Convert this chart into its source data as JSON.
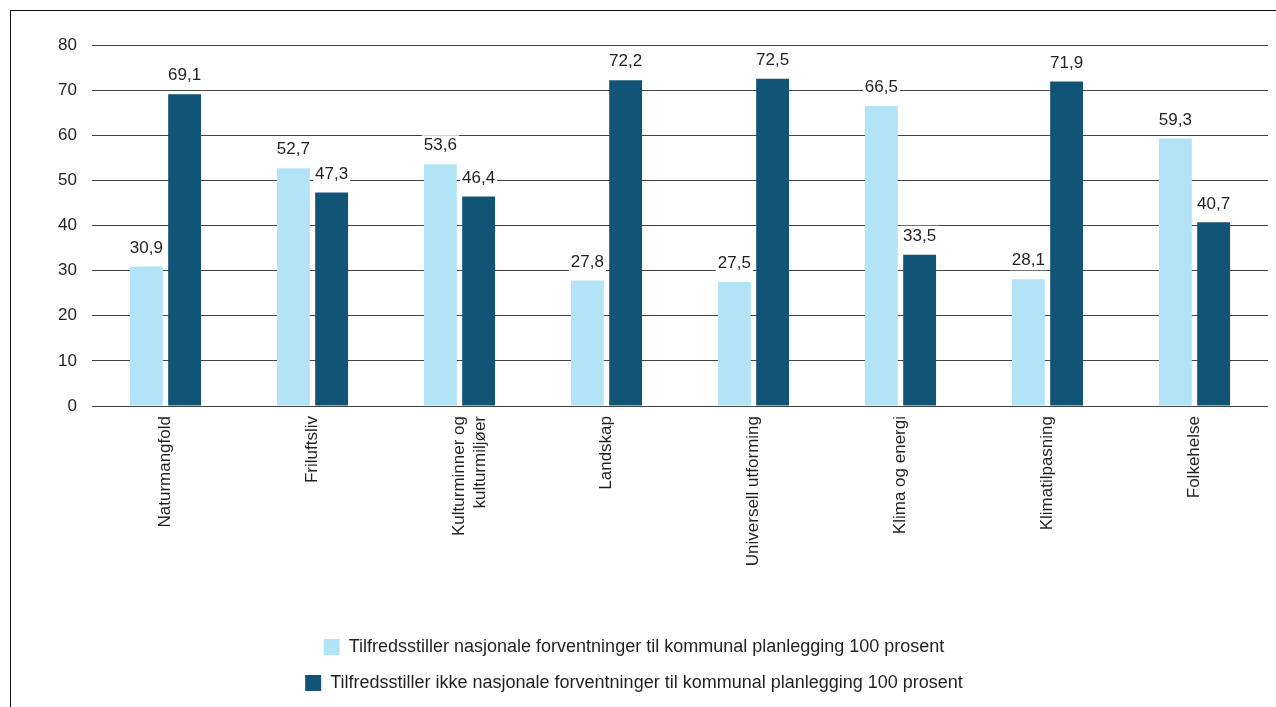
{
  "chart_data": {
    "type": "bar",
    "categories": [
      "Naturmangfold",
      "Friluftsliv",
      "Kulturminner og kulturmiljøer",
      "Landskap",
      "Universell utforming",
      "Klima og energi",
      "Klimatilpasning",
      "Folkehelse"
    ],
    "series": [
      {
        "name": "Tilfredsstiller nasjonale forventninger til kommunal planlegging 100 prosent",
        "color": "#b3e3f7",
        "values": [
          30.9,
          52.7,
          53.6,
          27.8,
          27.5,
          66.5,
          28.1,
          59.3
        ],
        "value_labels": [
          "30,9",
          "52,7",
          "53,6",
          "27,8",
          "27,5",
          "66,5",
          "28,1",
          "59,3"
        ]
      },
      {
        "name": "Tilfredsstiller ikke nasjonale forventninger til kommunal planlegging 100 prosent",
        "color": "#125476",
        "values": [
          69.1,
          47.3,
          46.4,
          72.2,
          72.5,
          33.5,
          71.9,
          40.7
        ],
        "value_labels": [
          "69,1",
          "47,3",
          "46,4",
          "72,2",
          "72,5",
          "33,5",
          "71,9",
          "40,7"
        ]
      }
    ],
    "ylim": [
      0,
      80
    ],
    "yticks": [
      0,
      10,
      20,
      30,
      40,
      50,
      60,
      70,
      80
    ],
    "grid": "y",
    "legend": "bottom"
  }
}
